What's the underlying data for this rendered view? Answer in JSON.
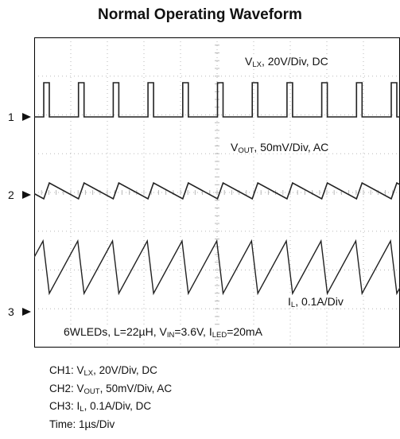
{
  "title": "Normal Operating Waveform",
  "traces": {
    "ch1": {
      "pre": "V",
      "sub": "LX",
      "post": ", 20V/Div, DC"
    },
    "ch2": {
      "pre": "V",
      "sub": "OUT",
      "post": ", 50mV/Div, AC"
    },
    "ch3": {
      "pre": "I",
      "sub": "L",
      "post": ", 0.1A/Div"
    }
  },
  "conditions": {
    "a": "6WLEDs, L=22µH, V",
    "a_sub": "IN",
    "b": "=3.6V, I",
    "b_sub": "LED",
    "c": "=20mA"
  },
  "markers": [
    "1",
    "2",
    "3"
  ],
  "legend": [
    {
      "pre": "CH1: V",
      "sub": "LX",
      "post": ", 20V/Div, DC"
    },
    {
      "pre": "CH2: V",
      "sub": "OUT",
      "post": ", 50mV/Div, AC"
    },
    {
      "pre": "CH3: I",
      "sub": "L",
      "post": ", 0.1A/Div, DC"
    },
    {
      "pre": "Time: 1µs/Div",
      "sub": "",
      "post": ""
    }
  ],
  "chart_data": {
    "type": "line",
    "divisions": {
      "x": 10,
      "y": 8
    },
    "time_per_div": "1µs",
    "period_div": 0.95,
    "channels": [
      {
        "name": "CH1",
        "waveform": "pulse",
        "duty": 0.16
      },
      {
        "name": "CH2",
        "waveform": "ripple"
      },
      {
        "name": "CH3",
        "waveform": "sawtooth"
      }
    ],
    "colors": {
      "trace": "#222222",
      "grid": "#b8b8b8",
      "frame": "#000000"
    }
  }
}
